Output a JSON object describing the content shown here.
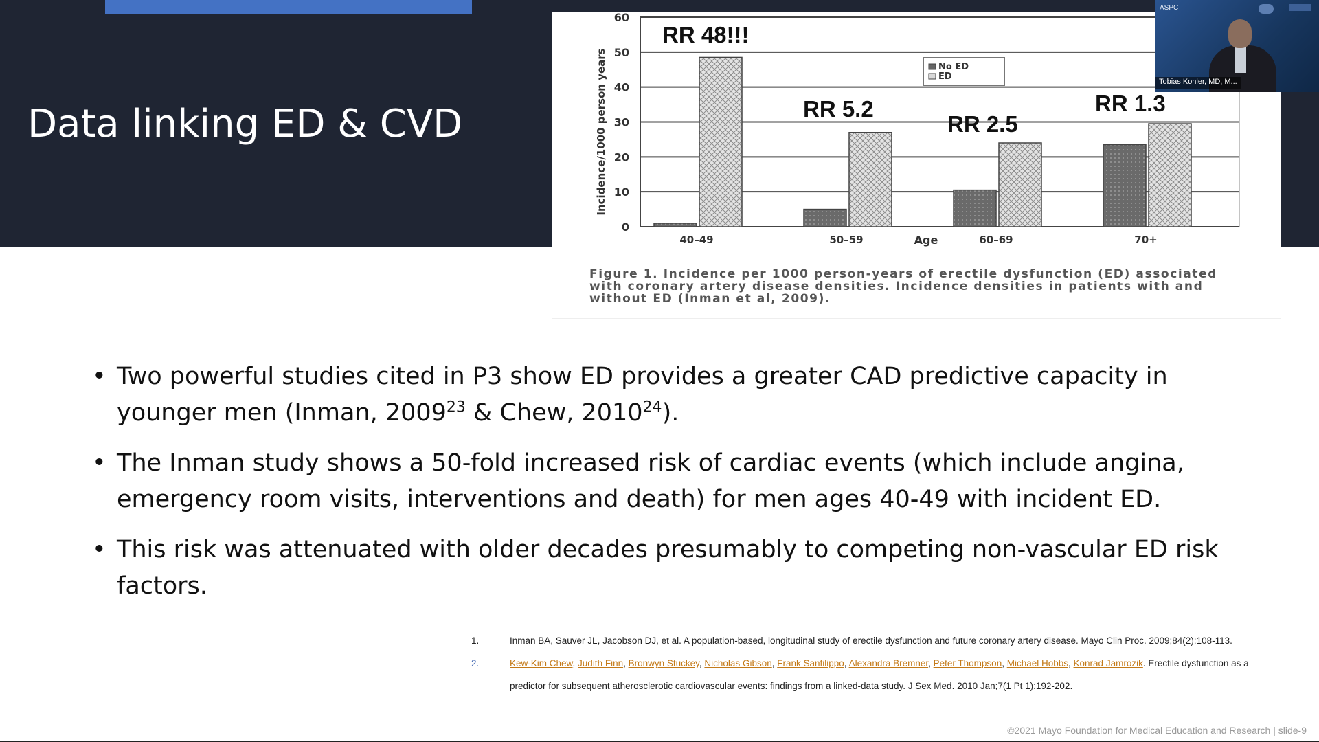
{
  "slide": {
    "title": "Data linking ED & CVD",
    "bullets": [
      {
        "text_a": "Two powerful studies cited in P3 show ED provides a greater CAD predictive capacity in younger men (Inman, 2009",
        "sup1": "23",
        "text_b": " & Chew, 2010",
        "sup2": "24",
        "text_c": ")."
      },
      {
        "text_a": "The Inman study shows a 50-fold increased risk of cardiac events (which include angina, emergency room visits, interventions and death) for men ages 40-49 with incident ED."
      },
      {
        "text_a": "This risk was attenuated with older decades presumably to competing non-vascular ED risk factors."
      }
    ],
    "bullet_glyph": "•"
  },
  "figure": {
    "caption": "Figure 1. Incidence per 1000 person-years of erectile dysfunction (ED) associated with coronary artery disease densities. Incidence densities in patients with and without ED (Inman et al, 2009)."
  },
  "chart_data": {
    "type": "bar",
    "categories": [
      "40–49",
      "50–59",
      "60–69",
      "70+"
    ],
    "series": [
      {
        "name": "No ED",
        "values": [
          1,
          5,
          10.5,
          23.5
        ],
        "color": "#666666"
      },
      {
        "name": "ED",
        "values": [
          48.5,
          27,
          24,
          29.5
        ],
        "color": "#d8d8d8"
      }
    ],
    "annotations": [
      "RR 48!!!",
      "RR 5.2",
      "RR 2.5",
      "RR 1.3"
    ],
    "xlabel": "Age",
    "ylabel": "Incidence/1000 person years",
    "yticks": [
      0,
      10,
      20,
      30,
      40,
      50,
      60
    ],
    "ytick_labels": [
      "0",
      "10",
      "20",
      "30",
      "40",
      "50",
      "60"
    ],
    "ylim": [
      0,
      60
    ],
    "grid": true,
    "legend": "top-right"
  },
  "references": [
    {
      "num": "1.",
      "text": "Inman BA, Sauver JL, Jacobson DJ, et al. A population-based, longitudinal study of erectile dysfunction and future coronary artery disease. Mayo Clin Proc. 2009;84(2):108-113."
    },
    {
      "num": "2.",
      "authors": [
        "Kew-Kim Chew",
        "Judith Finn",
        "Bronwyn Stuckey",
        "Nicholas Gibson",
        "Frank Sanfilippo",
        "Alexandra Bremner",
        "Peter Thompson",
        "Michael Hobbs",
        "Konrad Jamrozik"
      ],
      "text_after": ". Erectile dysfunction as a",
      "text_line2": "predictor for subsequent atherosclerotic cardiovascular events: findings from a linked-data study. J Sex Med. 2010 Jan;7(1 Pt 1):192-202."
    }
  ],
  "footer": "©2021 Mayo Foundation for Medical Education and Research  |  slide-9",
  "webcam": {
    "name": "Tobias Kohler, MD, M...",
    "logo_text": "ASPC"
  },
  "colors": {
    "title_band": "#1f2533",
    "accent": "#4472c4",
    "link": "#c47a18"
  }
}
